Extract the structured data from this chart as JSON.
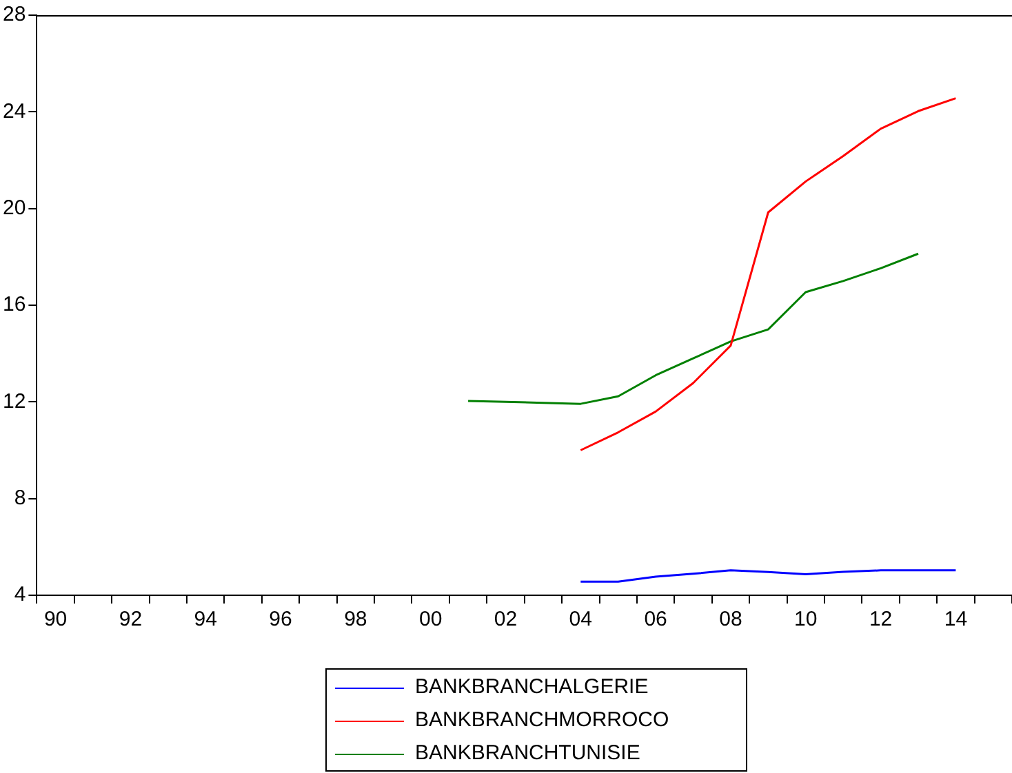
{
  "chart_data": {
    "type": "line",
    "categories": [
      "90",
      null,
      "92",
      null,
      "94",
      null,
      "96",
      null,
      "98",
      null,
      "00",
      null,
      "02",
      null,
      "04",
      null,
      "06",
      null,
      "08",
      null,
      "10",
      null,
      "12",
      null,
      "14",
      null
    ],
    "series": [
      {
        "name": "BANKBRANCHALGERIE",
        "color": "#0000ff",
        "values": [
          null,
          null,
          null,
          null,
          null,
          null,
          null,
          null,
          null,
          null,
          null,
          null,
          null,
          null,
          4.56,
          4.56,
          4.77,
          4.89,
          5.03,
          4.96,
          4.87,
          4.97,
          5.03,
          5.03,
          5.03,
          null
        ]
      },
      {
        "name": "BANKBRANCHMORROCO",
        "color": "#ff0000",
        "values": [
          null,
          null,
          null,
          null,
          null,
          null,
          null,
          null,
          null,
          null,
          null,
          null,
          null,
          null,
          10.0,
          10.74,
          11.6,
          12.78,
          14.33,
          19.84,
          21.12,
          22.17,
          23.3,
          24.03,
          24.56,
          null
        ]
      },
      {
        "name": "BANKBRANCHTUNISIE",
        "color": "#008000",
        "values": [
          null,
          null,
          null,
          null,
          null,
          null,
          null,
          null,
          null,
          null,
          null,
          12.04,
          12.0,
          11.96,
          11.92,
          12.23,
          13.1,
          13.8,
          14.5,
          15.0,
          16.54,
          17.0,
          17.53,
          18.13,
          null,
          null
        ]
      }
    ],
    "ylim": [
      4,
      28
    ],
    "yticks": [
      4,
      8,
      12,
      16,
      20,
      24,
      28
    ],
    "grid": false,
    "legend": "bottom",
    "marker": "none",
    "line_style": "solid"
  }
}
